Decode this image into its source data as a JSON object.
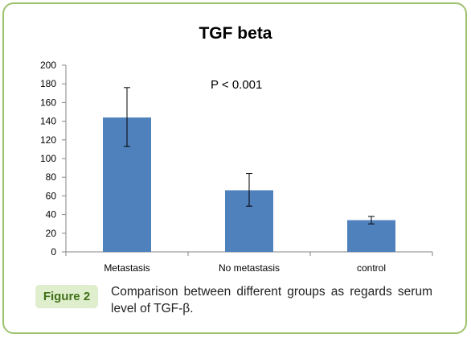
{
  "chart_data": {
    "type": "bar",
    "title": "TGF beta",
    "categories": [
      "Metastasis",
      "No metastasis",
      "control"
    ],
    "values": [
      144,
      66,
      34
    ],
    "error_bars": [
      {
        "low": 113,
        "high": 176
      },
      {
        "low": 49,
        "high": 84
      },
      {
        "low": 30,
        "high": 38
      }
    ],
    "ylim": [
      0,
      200
    ],
    "yticks": [
      0,
      20,
      40,
      60,
      80,
      100,
      120,
      140,
      160,
      180,
      200
    ],
    "grid": false,
    "annotation": "P < 0.001",
    "bar_color": "#4f81bd"
  },
  "caption": {
    "label": "Figure 2",
    "text": "Comparison between different groups as regards serum level of TGF-β."
  },
  "colors": {
    "frame": "#9dc26d",
    "caption_label_bg": "#dfeecd",
    "caption_label_text": "#3f6f18"
  }
}
